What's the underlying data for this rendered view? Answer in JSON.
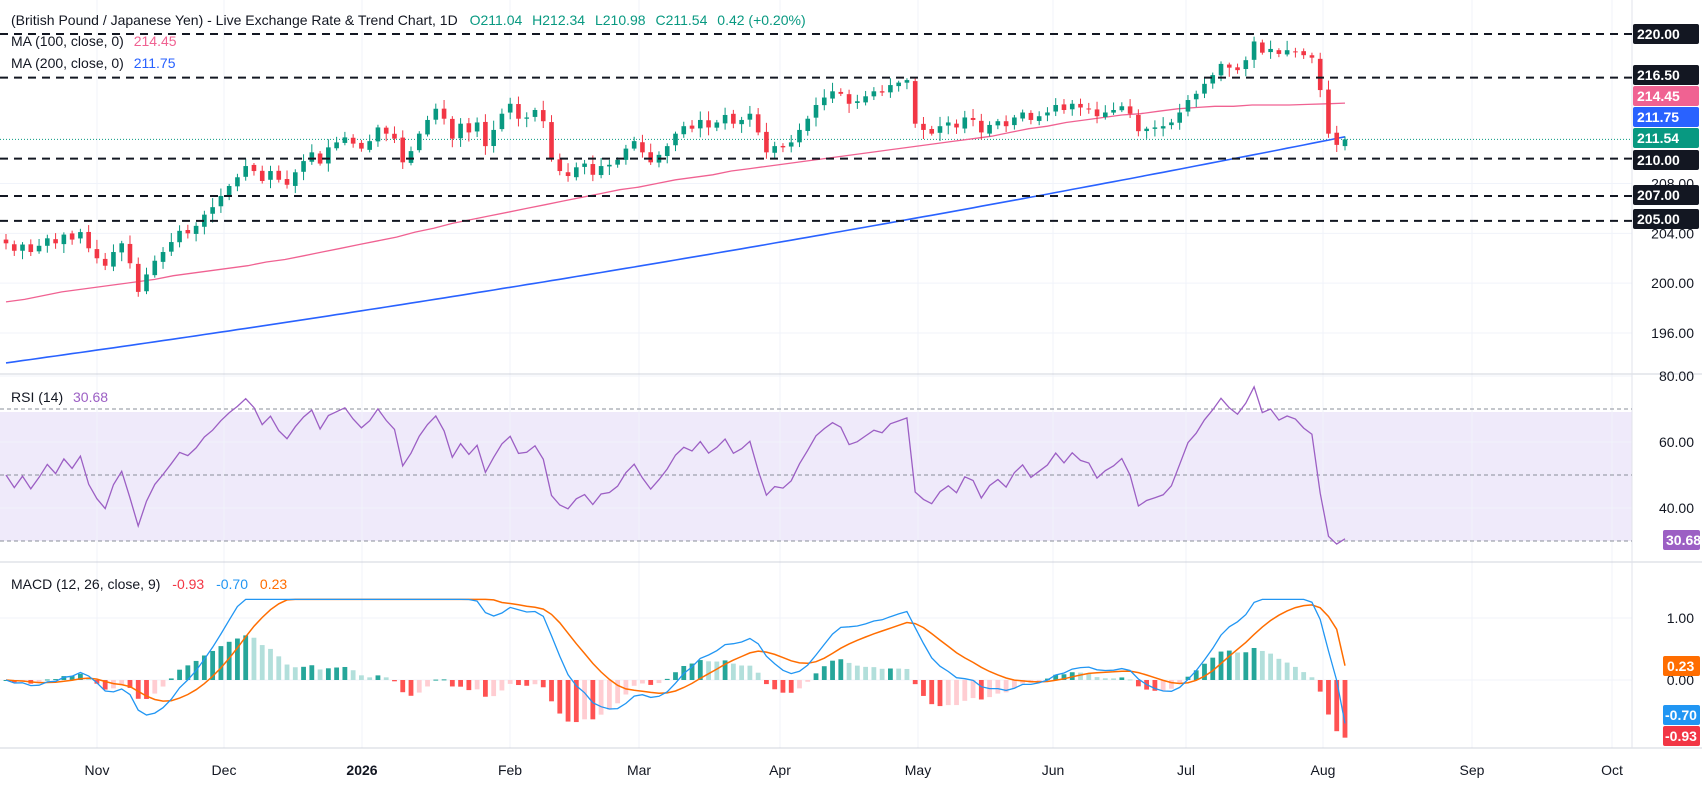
{
  "header": {
    "title": "(British Pound / Japanese Yen) - Live Exchange Rate & Trend Chart, 1D",
    "open": "O211.04",
    "high": "H212.34",
    "low": "L210.98",
    "close": "C211.54",
    "change": "0.42 (+0.20%)",
    "ma100_label": "MA (100, close, 0)",
    "ma100_value": "214.45",
    "ma200_label": "MA (200, close, 0)",
    "ma200_value": "211.75"
  },
  "rsi_legend": {
    "label": "RSI (14)",
    "value": "30.68"
  },
  "macd_legend": {
    "label": "MACD (12, 26, close, 9)",
    "hist": "-0.93",
    "macd": "-0.70",
    "signal": "0.23"
  },
  "colors": {
    "up": "#089981",
    "down": "#f23645",
    "ma100": "#f06292",
    "ma200": "#2962ff",
    "rsi": "#9c5fc4",
    "macd": "#2196f3",
    "signal": "#ff6d00",
    "hist_up_strong": "#26a69a",
    "hist_up_weak": "#b2dfdb",
    "hist_down_strong": "#ff5252",
    "hist_down_weak": "#ffcdd2"
  },
  "chart_data": [
    {
      "type": "candlestick",
      "title": "(British Pound / Japanese Yen) - Live Exchange Rate & Trend Chart, 1D",
      "x_ticks": [
        "Nov",
        "Dec",
        "2026",
        "Feb",
        "Mar",
        "Apr",
        "May",
        "Jun",
        "Jul",
        "Aug",
        "Sep",
        "Oct"
      ],
      "y_ticks": [
        196.0,
        200.0,
        204.0,
        208.0
      ],
      "ylim": [
        194.3,
        220.6
      ],
      "levels": [
        220.0,
        216.5,
        210.0,
        207.0,
        205.0
      ],
      "last_price": 211.54,
      "ma100_last": 214.45,
      "ma200_last": 211.75,
      "closes": [
        203.2,
        202.6,
        203.1,
        202.5,
        203.0,
        203.6,
        203.2,
        203.9,
        203.5,
        204.1,
        202.8,
        202.0,
        201.4,
        202.5,
        203.2,
        201.6,
        199.3,
        200.7,
        201.8,
        202.5,
        203.3,
        204.2,
        204.0,
        204.6,
        205.5,
        206.1,
        207.0,
        207.8,
        208.5,
        209.4,
        209.0,
        208.2,
        209.0,
        208.3,
        207.9,
        208.9,
        209.8,
        210.5,
        209.6,
        210.9,
        211.3,
        211.7,
        211.2,
        210.8,
        211.4,
        212.5,
        212.0,
        211.6,
        209.7,
        210.6,
        212.0,
        213.1,
        214.0,
        213.2,
        211.6,
        212.8,
        212.1,
        212.9,
        211.0,
        212.3,
        213.6,
        214.4,
        213.2,
        213.3,
        213.9,
        213.0,
        210.0,
        209.0,
        208.6,
        209.3,
        209.6,
        208.7,
        209.4,
        209.5,
        209.9,
        210.8,
        211.4,
        210.5,
        209.7,
        210.3,
        211.0,
        212.0,
        212.6,
        212.4,
        213.1,
        212.5,
        212.9,
        213.5,
        212.8,
        213.1,
        213.6,
        212.1,
        210.5,
        211.0,
        210.9,
        211.3,
        212.3,
        213.2,
        214.3,
        214.9,
        215.4,
        215.2,
        214.4,
        214.6,
        215.0,
        215.4,
        215.3,
        215.9,
        216.1,
        216.3,
        212.8,
        212.3,
        212.0,
        212.6,
        212.9,
        212.5,
        213.3,
        213.1,
        212.1,
        212.7,
        213.0,
        212.6,
        213.3,
        213.7,
        213.1,
        213.4,
        213.7,
        214.3,
        213.9,
        214.4,
        214.1,
        214.0,
        213.4,
        213.7,
        213.9,
        214.2,
        213.6,
        212.2,
        212.4,
        212.5,
        212.6,
        212.9,
        213.7,
        214.7,
        215.2,
        216.0,
        216.7,
        217.6,
        217.3,
        217.1,
        217.9,
        219.4,
        218.5,
        218.8,
        218.4,
        218.7,
        218.6,
        218.3,
        218.1,
        215.5,
        212.0,
        211.1,
        211.54
      ],
      "ma100_series": [
        198.5,
        198.7,
        199.0,
        199.3,
        199.5,
        199.7,
        199.9,
        200.1,
        200.3,
        200.6,
        200.8,
        201.0,
        201.2,
        201.4,
        201.7,
        201.9,
        202.2,
        202.5,
        202.8,
        203.1,
        203.4,
        203.7,
        204.1,
        204.4,
        204.8,
        205.1,
        205.4,
        205.7,
        206.0,
        206.3,
        206.6,
        206.9,
        207.2,
        207.5,
        207.7,
        208.0,
        208.3,
        208.5,
        208.7,
        209.0,
        209.2,
        209.4,
        209.6,
        209.8,
        210.0,
        210.2,
        210.4,
        210.6,
        210.8,
        211.0,
        211.2,
        211.4,
        211.6,
        211.8,
        212.1,
        212.4,
        212.6,
        212.9,
        213.1,
        213.3,
        213.5,
        213.6,
        213.8,
        214.0,
        214.1,
        214.2,
        214.2,
        214.3,
        214.3,
        214.3,
        214.35,
        214.4,
        214.45
      ]
    },
    {
      "type": "line",
      "name": "RSI (14)",
      "y_ticks": [
        40.0,
        60.0,
        80.0
      ],
      "bands": [
        70,
        50,
        30
      ],
      "last_value": 30.68
    },
    {
      "type": "line",
      "name": "MACD (12, 26, close, 9)",
      "y_ticks": [
        0.0,
        1.0
      ],
      "macd_last": -0.7,
      "signal_last": 0.23,
      "hist_last": -0.93
    }
  ],
  "axis_tags": {
    "lvl_220": "220.00",
    "lvl_2165": "216.50",
    "ma100": "214.45",
    "ma200": "211.75",
    "price": "211.54",
    "lvl_210": "210.00",
    "lvl_207": "207.00",
    "lvl_205": "205.00",
    "rsi": "30.68",
    "signal": "0.23",
    "macd": "-0.70",
    "hist": "-0.93"
  }
}
